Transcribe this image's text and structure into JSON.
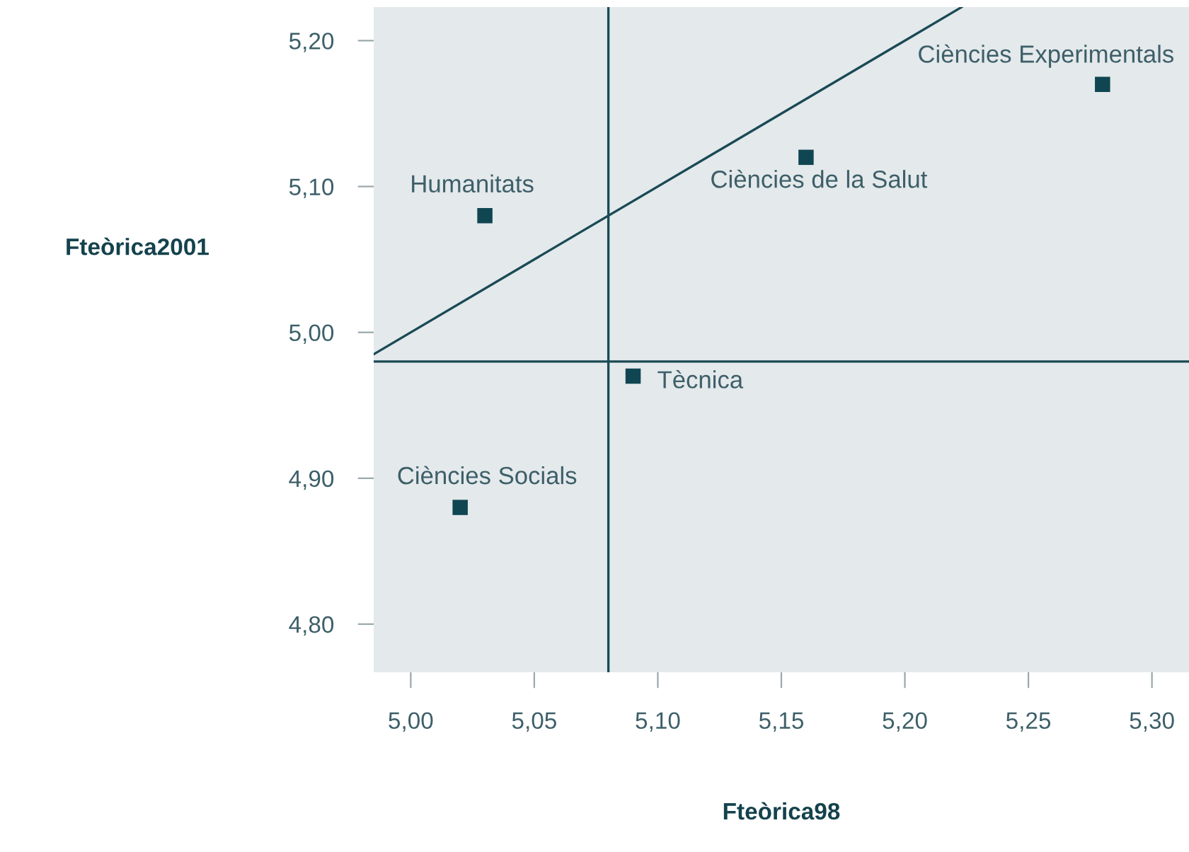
{
  "chart_data": {
    "type": "scatter",
    "xlabel": "Fteòrica98",
    "ylabel": "Fteòrica2001",
    "series": [
      {
        "color": "#0f4652",
        "marker": "square",
        "x": [
          5.03,
          5.28,
          5.16,
          5.09,
          5.02
        ],
        "values": [
          5.08,
          5.17,
          5.12,
          4.97,
          4.88
        ]
      },
      {
        "type": "line",
        "color": "#1a4a55",
        "x": [
          4.985,
          5.223
        ],
        "values": [
          4.985,
          5.223
        ]
      }
    ],
    "annotations": [
      {
        "text": "Humanitats",
        "x": 5.03,
        "y": 5.08
      },
      {
        "text": "Ciències Experimentals",
        "x": 5.28,
        "y": 5.17
      },
      {
        "text": "Ciències de la Salut",
        "x": 5.16,
        "y": 5.12
      },
      {
        "text": "Tècnica",
        "x": 5.09,
        "y": 4.97
      },
      {
        "text": "Ciències Socials",
        "x": 5.02,
        "y": 4.88
      }
    ],
    "ref_lines": [
      {
        "axis": "x",
        "value": 5.08,
        "label": null,
        "color": "#1a4a55"
      },
      {
        "axis": "y",
        "value": 4.98,
        "label": null,
        "color": "#1a4a55"
      }
    ],
    "xlim": [
      4.985,
      5.315
    ],
    "ylim": [
      4.767,
      5.223
    ],
    "xticks": [
      {
        "value": 5.0,
        "label": "5,00"
      },
      {
        "value": 5.05,
        "label": "5,05"
      },
      {
        "value": 5.1,
        "label": "5,10"
      },
      {
        "value": 5.15,
        "label": "5,15"
      },
      {
        "value": 5.2,
        "label": "5,20"
      },
      {
        "value": 5.25,
        "label": "5,25"
      },
      {
        "value": 5.3,
        "label": "5,30"
      }
    ],
    "yticks": [
      {
        "value": 4.8,
        "label": "4,80"
      },
      {
        "value": 4.9,
        "label": "4,90"
      },
      {
        "value": 5.0,
        "label": "5,00"
      },
      {
        "value": 5.1,
        "label": "5,10"
      },
      {
        "value": 5.2,
        "label": "5,20"
      }
    ],
    "grid": false,
    "legend": false
  }
}
